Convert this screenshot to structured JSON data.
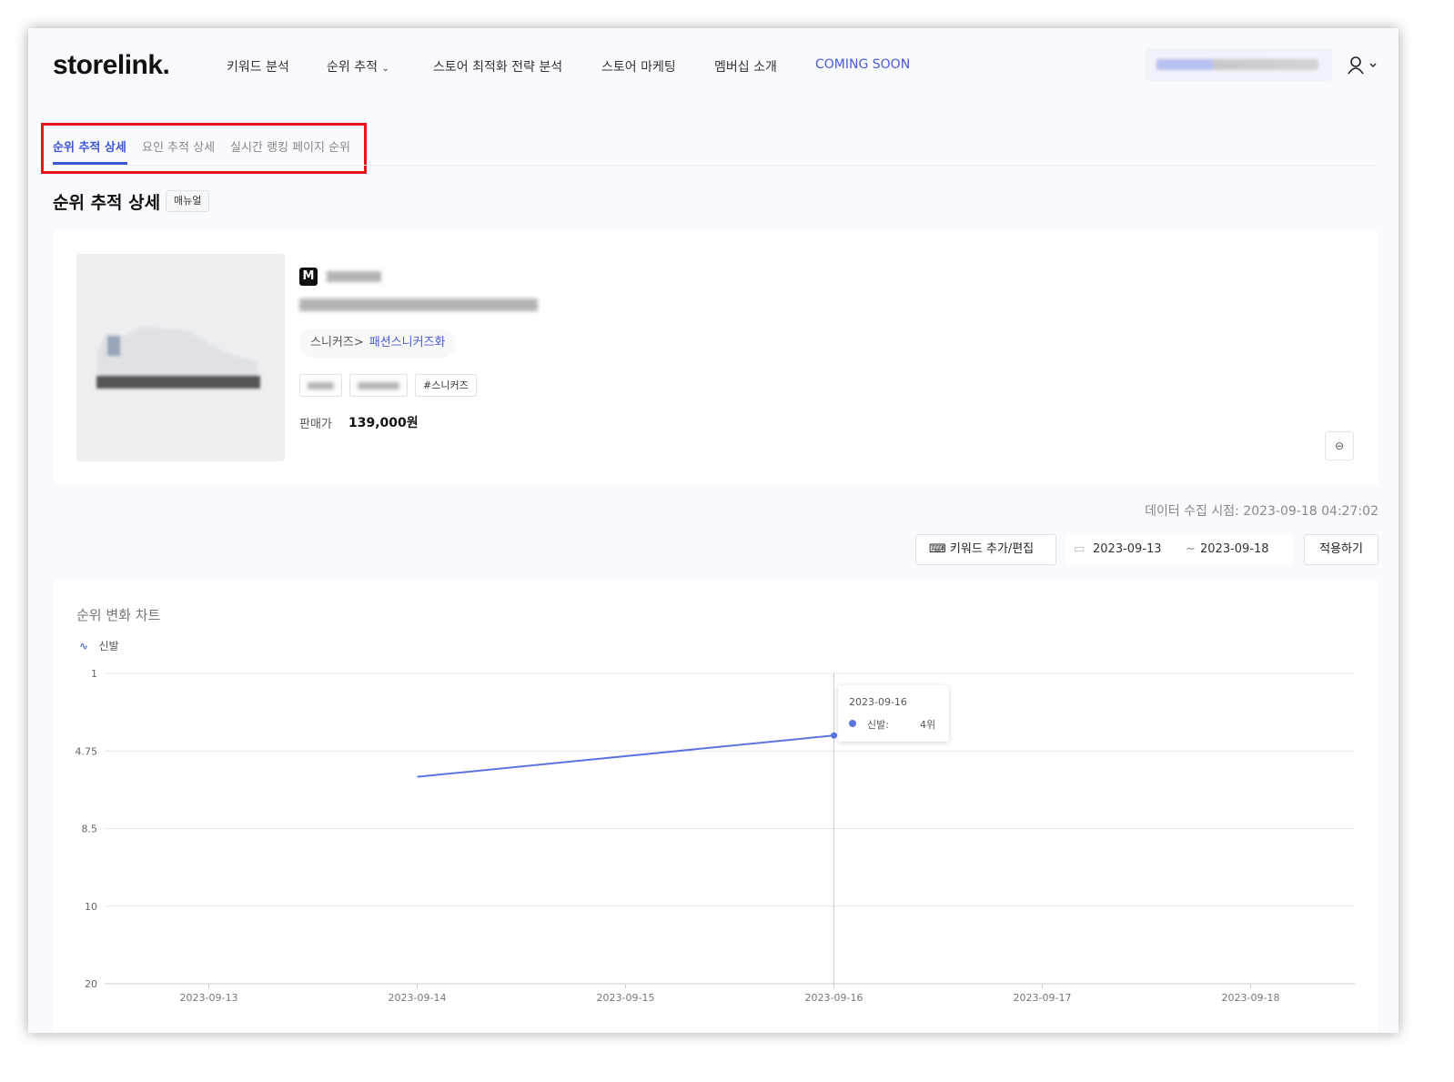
{
  "header": {
    "logo": "storelink.",
    "nav": [
      {
        "label": "키워드 분석"
      },
      {
        "label": "순위 추적",
        "dropdown": true
      },
      {
        "label": "스토어 최적화 전략 분석"
      },
      {
        "label": "스토어 마케팅"
      },
      {
        "label": "멤버십 소개"
      },
      {
        "label": "COMING SOON",
        "accent": true
      }
    ],
    "account_icon": "user-icon",
    "accent_color": "#4a5bd8"
  },
  "tabs": [
    {
      "label": "순위 추적 상세",
      "active": true
    },
    {
      "label": "요인 추적 상세"
    },
    {
      "label": "실시간 랭킹 페이지 순위"
    }
  ],
  "page": {
    "title": "순위 추적 상세",
    "manual_label": "매뉴얼"
  },
  "product": {
    "store_badge": "M",
    "category_parent": "스니커즈>",
    "category_child": "패션스니커즈화",
    "tag_visible": "#스니커즈",
    "price_label": "판매가",
    "price": "139,000원",
    "link_icon": "link-icon"
  },
  "toolbar": {
    "collected": "데이터 수집 시점: 2023-09-18 04:27:02",
    "keyword_button": "키워드 추가/편집",
    "date_from": "2023-09-13",
    "date_sep": "~",
    "date_to": "2023-09-18",
    "apply_button": "적용하기"
  },
  "chart_data": {
    "type": "line",
    "title": "순위 변화 차트",
    "legend": [
      "신발"
    ],
    "legend_placement": "top-left",
    "y_reversed": true,
    "y_ticks": [
      "1",
      "4.75",
      "8.5",
      "10",
      "20"
    ],
    "x": [
      "2023-09-13",
      "2023-09-14",
      "2023-09-15",
      "2023-09-16",
      "2023-09-17",
      "2023-09-18"
    ],
    "series": [
      {
        "name": "신발",
        "color": "#5b74e0",
        "values": [
          null,
          6,
          null,
          4,
          null,
          null
        ]
      }
    ],
    "grid": true,
    "tooltip": {
      "date": "2023-09-16",
      "series": "신발:",
      "value": "4위"
    }
  }
}
